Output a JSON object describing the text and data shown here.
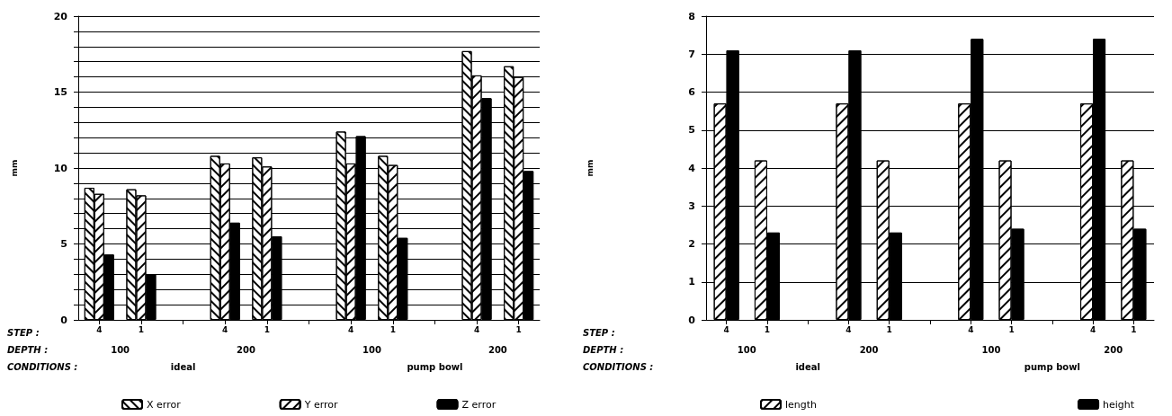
{
  "chart_data": [
    {
      "type": "bar",
      "ylabel": "mm",
      "categories": [
        "4",
        "1",
        null,
        "4",
        "1",
        null,
        "4",
        "1",
        null,
        "4",
        "1"
      ],
      "series": [
        {
          "name": "X error",
          "color": "#ffffff",
          "values": [
            8.7,
            8.6,
            null,
            10.8,
            10.7,
            null,
            12.4,
            10.8,
            null,
            17.7,
            16.7
          ]
        },
        {
          "name": "Y error",
          "color": "#ffffff",
          "values": [
            8.3,
            8.2,
            null,
            10.3,
            10.1,
            null,
            10.3,
            10.2,
            null,
            16.1,
            16.0
          ]
        },
        {
          "name": "Z error",
          "color": "#000000",
          "values": [
            4.3,
            3.0,
            null,
            6.4,
            5.5,
            null,
            12.1,
            5.4,
            null,
            14.6,
            9.8
          ]
        }
      ],
      "ylim": [
        0,
        20
      ],
      "yticks": [
        0,
        {
          "value": 1,
          "label": null
        },
        {
          "value": 2,
          "label": null
        },
        {
          "value": 3,
          "label": null
        },
        {
          "value": 4,
          "label": null
        },
        5,
        {
          "value": 6,
          "label": null
        },
        {
          "value": 7,
          "label": null
        },
        {
          "value": 8,
          "label": null
        },
        {
          "value": 9,
          "label": null
        },
        10,
        {
          "value": 11,
          "label": null
        },
        {
          "value": 12,
          "label": null
        },
        {
          "value": 13,
          "label": null
        },
        {
          "value": 14,
          "label": null
        },
        15,
        {
          "value": 16,
          "label": null
        },
        {
          "value": 17,
          "label": null
        },
        {
          "value": 18,
          "label": null
        },
        {
          "value": 19,
          "label": null
        },
        20
      ],
      "grid": "y",
      "legend": "bottom",
      "annotations": [
        "STEP :",
        "DEPTH :",
        "CONDITIONS :",
        "100",
        "200",
        "100",
        "200",
        "ideal",
        "pump bowl"
      ]
    },
    {
      "type": "bar",
      "ylabel": "mm",
      "categories": [
        "4",
        "1",
        null,
        "4",
        "1",
        null,
        "4",
        "1",
        null,
        "4",
        "1"
      ],
      "series": [
        {
          "name": "length",
          "color": "#ffffff",
          "values": [
            5.7,
            4.2,
            null,
            5.7,
            4.2,
            null,
            5.7,
            4.2,
            null,
            5.7,
            4.2
          ]
        },
        {
          "name": "height",
          "color": "#000000",
          "values": [
            7.1,
            2.3,
            null,
            7.1,
            2.3,
            null,
            7.4,
            2.4,
            null,
            7.4,
            2.4
          ]
        }
      ],
      "ylim": [
        0,
        8
      ],
      "yticks": [
        0,
        1,
        2,
        3,
        4,
        5,
        6,
        7,
        8
      ],
      "grid": "y",
      "legend": "bottom",
      "annotations": [
        "STEP :",
        "DEPTH :",
        "CONDITIONS :",
        "100",
        "200",
        "100",
        "200",
        "ideal",
        "pump bowl"
      ]
    }
  ]
}
